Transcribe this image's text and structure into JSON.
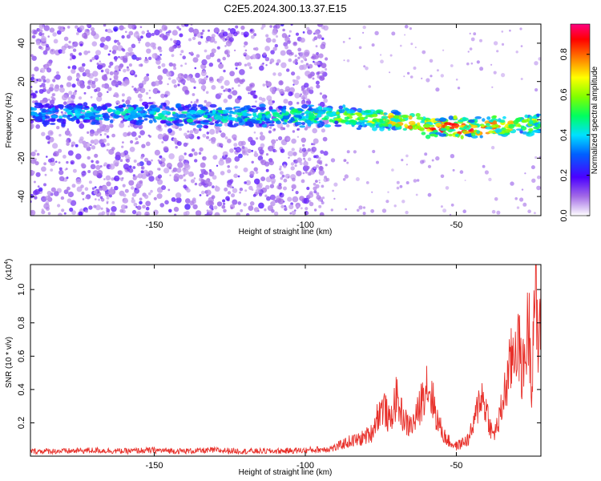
{
  "title": "C2E5.2024.300.13.37.E15",
  "colors": {
    "trace": "#e8302a",
    "scatter": "#8a2be2"
  },
  "chart_data": [
    {
      "type": "heatmap",
      "xlabel": "Height of straight line (km)",
      "ylabel": "Frequency (Hz)",
      "xlim": [
        -191,
        -22
      ],
      "ylim": [
        -50,
        50
      ],
      "x_ticks": [
        -150,
        -100,
        -50
      ],
      "x_tick_labels": [
        "-150",
        "-100",
        "-50"
      ],
      "y_ticks": [
        40,
        20,
        0,
        -20,
        -40
      ],
      "y_tick_labels": [
        "40",
        "20",
        "0",
        "-20",
        "-40"
      ],
      "colorbar": {
        "label": "Normalized spectral amplitude",
        "range": [
          0,
          0.95
        ],
        "ticks": [
          0.0,
          0.2,
          0.4,
          0.6,
          0.8
        ],
        "tick_labels": [
          "0.0",
          "0.2",
          "0.4",
          "0.6",
          "0.8"
        ],
        "colormap": "rainbow"
      },
      "ridge": {
        "x": [
          -191,
          -175,
          -150,
          -125,
          -100,
          -90,
          -80,
          -70,
          -60,
          -50,
          -40,
          -30,
          -22
        ],
        "y": [
          3,
          3,
          3,
          2,
          2,
          2,
          1,
          0,
          -3,
          -4,
          -4,
          -3,
          -2
        ],
        "strength": [
          0.2,
          0.25,
          0.3,
          0.3,
          0.35,
          0.45,
          0.5,
          0.6,
          0.7,
          0.75,
          0.65,
          0.55,
          0.5
        ]
      }
    },
    {
      "type": "line",
      "xlabel": "Height of straight line (km)",
      "ylabel": "SNR (10 * v/v)",
      "scale_label": "(x10",
      "scale_exp": "4",
      "scale_close": ")",
      "xlim": [
        -191,
        -22
      ],
      "ylim": [
        0,
        1.15
      ],
      "x_ticks": [
        -150,
        -100,
        -50
      ],
      "x_tick_labels": [
        "-150",
        "-100",
        "-50"
      ],
      "y_ticks": [
        0.2,
        0.4,
        0.6,
        0.8,
        1.0
      ],
      "y_tick_labels": [
        "0.2",
        "0.4",
        "0.6",
        "0.8",
        "1.0"
      ],
      "series": [
        {
          "x": [
            -191,
            -180,
            -170,
            -160,
            -150,
            -140,
            -130,
            -120,
            -110,
            -100,
            -95,
            -90,
            -88,
            -85,
            -82,
            -80,
            -78,
            -76,
            -74,
            -72,
            -70,
            -68,
            -66,
            -64,
            -62,
            -60,
            -58,
            -56,
            -54,
            -52,
            -50,
            -48,
            -46,
            -44,
            -42,
            -40,
            -38,
            -36,
            -34,
            -32,
            -30,
            -28,
            -26,
            -25,
            -24,
            -23,
            -22
          ],
          "values": [
            0.03,
            0.03,
            0.035,
            0.03,
            0.035,
            0.03,
            0.035,
            0.03,
            0.03,
            0.035,
            0.04,
            0.05,
            0.07,
            0.09,
            0.1,
            0.12,
            0.14,
            0.25,
            0.3,
            0.2,
            0.35,
            0.25,
            0.18,
            0.2,
            0.3,
            0.45,
            0.35,
            0.2,
            0.12,
            0.08,
            0.06,
            0.08,
            0.1,
            0.2,
            0.38,
            0.28,
            0.12,
            0.2,
            0.38,
            0.55,
            0.72,
            0.5,
            0.8,
            0.45,
            1.1,
            0.6,
            0.95
          ]
        }
      ]
    }
  ]
}
